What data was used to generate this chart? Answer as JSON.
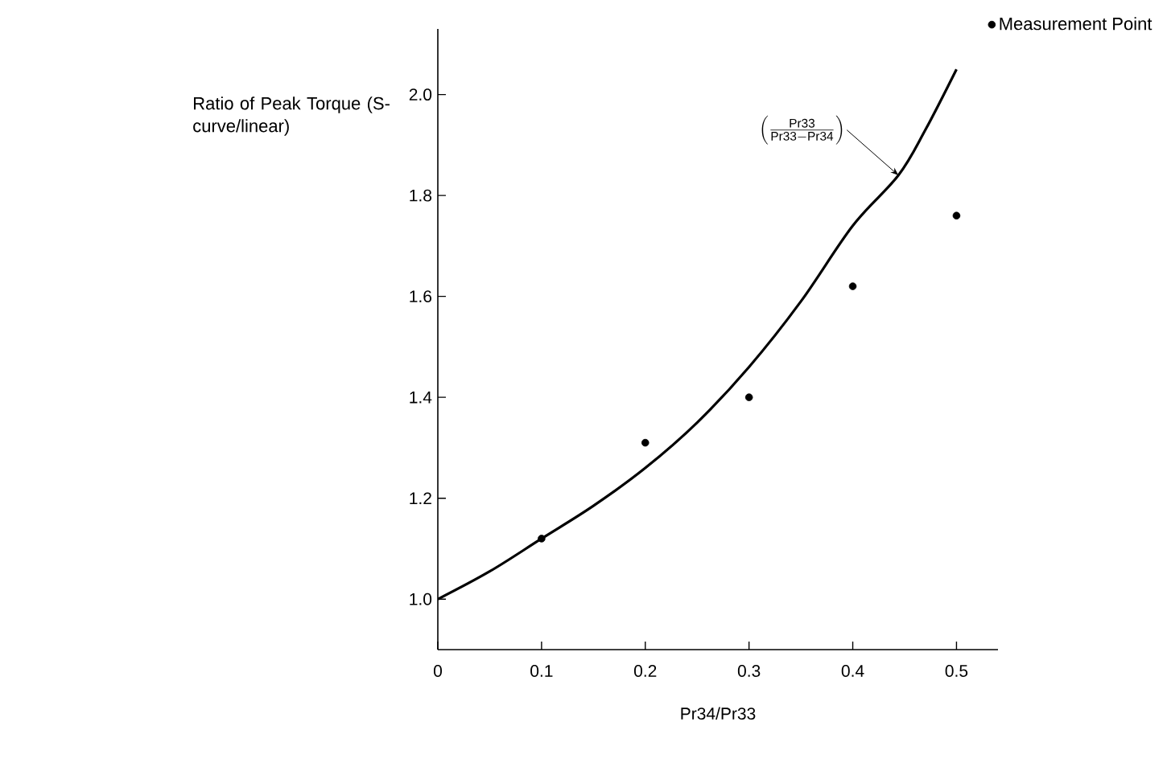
{
  "chart_data": {
    "type": "line",
    "xlabel": "Pr34/Pr33",
    "ylabel": "Ratio of Peak Torque (S-curve/linear)",
    "xlim": [
      0,
      0.54
    ],
    "ylim": [
      0.9,
      2.13
    ],
    "xticks": [
      0,
      0.1,
      0.2,
      0.3,
      0.4,
      0.5
    ],
    "yticks": [
      {
        "value": 1.0,
        "label": "1.0"
      },
      {
        "value": 1.2,
        "label": "1.2"
      },
      {
        "value": 1.4,
        "label": "1.4"
      },
      {
        "value": 1.6,
        "label": "1.6"
      },
      {
        "value": 1.8,
        "label": "1.8"
      },
      {
        "value": 2.0,
        "label": "2.0"
      }
    ],
    "series": [
      {
        "color": "#000000",
        "marker": "none",
        "x": [
          0,
          0.05,
          0.1,
          0.15,
          0.2,
          0.25,
          0.3,
          0.35,
          0.4,
          0.444,
          0.47,
          0.5
        ],
        "values": [
          1.0,
          1.055,
          1.12,
          1.185,
          1.26,
          1.35,
          1.46,
          1.59,
          1.74,
          1.84,
          1.93,
          2.05
        ]
      },
      {
        "type": "scatter",
        "name": "Measurement Point",
        "color": "#000000",
        "marker": "circle",
        "x": [
          0.1,
          0.2,
          0.3,
          0.4,
          0.5
        ],
        "values": [
          1.12,
          1.31,
          1.4,
          1.62,
          1.76
        ]
      }
    ],
    "annotations": [
      {
        "text": "\\left(\\frac{\\mathrm{Pr33}}{\\mathrm{Pr33}-\\mathrm{Pr34}}\\right)",
        "x": 0.444,
        "y": 1.84
      }
    ],
    "legend": "top right",
    "grid": false
  }
}
